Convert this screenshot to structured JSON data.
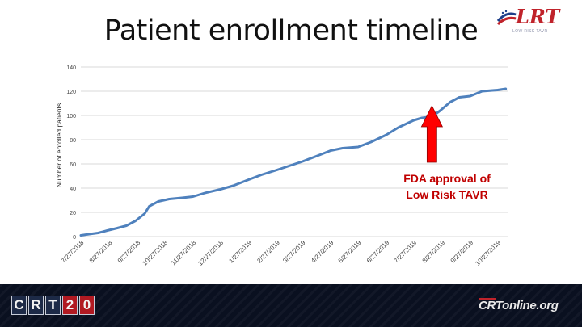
{
  "slide": {
    "title": "Patient enrollment timeline",
    "logo_text": "LRT",
    "logo_subtext": "LOW RISK TAVR",
    "annotation_line1": "FDA approval of",
    "annotation_line2": "Low Risk TAVR",
    "footer_logo": [
      "C",
      "R",
      "T",
      "2",
      "0"
    ],
    "footer_site": "CRTonline.org"
  },
  "colors": {
    "line": "#4f81bd",
    "grid": "#d9d9d9",
    "arrow": "#ff0000",
    "annotation": "#c00000",
    "footer": "#0a1020"
  },
  "chart_data": {
    "type": "line",
    "title": "",
    "xlabel": "",
    "ylabel": "Number of enrolled patients",
    "ylim": [
      0,
      140
    ],
    "yticks": [
      0,
      20,
      40,
      60,
      80,
      100,
      120,
      140
    ],
    "grid": true,
    "legend": "none",
    "xtick_labels": [
      "7/27/2018",
      "8/27/2018",
      "9/27/2018",
      "10/27/2018",
      "11/27/2018",
      "12/27/2018",
      "1/27/2019",
      "2/27/2019",
      "3/27/2019",
      "4/27/2019",
      "5/27/2019",
      "6/27/2019",
      "7/27/2019",
      "8/27/2019",
      "9/27/2019",
      "10/27/2019"
    ],
    "series": [
      {
        "x": [
          "2018-07-27",
          "2018-08-05",
          "2018-08-15",
          "2018-08-25",
          "2018-09-05",
          "2018-09-15",
          "2018-09-25",
          "2018-10-05",
          "2018-10-10",
          "2018-10-20",
          "2018-11-01",
          "2018-11-15",
          "2018-11-27",
          "2018-12-10",
          "2018-12-27",
          "2019-01-10",
          "2019-01-27",
          "2019-02-10",
          "2019-02-27",
          "2019-03-15",
          "2019-03-27",
          "2019-04-10",
          "2019-04-27",
          "2019-05-10",
          "2019-05-27",
          "2019-06-10",
          "2019-06-27",
          "2019-07-10",
          "2019-07-27",
          "2019-08-05",
          "2019-08-16",
          "2019-08-25",
          "2019-09-05",
          "2019-09-15",
          "2019-09-27",
          "2019-10-10",
          "2019-10-27",
          "2019-11-05"
        ],
        "values": [
          1,
          2,
          3,
          5,
          7,
          9,
          13,
          19,
          25,
          29,
          31,
          32,
          33,
          36,
          39,
          42,
          47,
          51,
          55,
          59,
          62,
          66,
          71,
          73,
          74,
          78,
          84,
          90,
          96,
          98,
          99,
          104,
          111,
          115,
          116,
          120,
          121,
          122
        ]
      }
    ],
    "annotation": {
      "text": "FDA approval of Low Risk TAVR",
      "arrow_date": "2019-08-16"
    }
  }
}
